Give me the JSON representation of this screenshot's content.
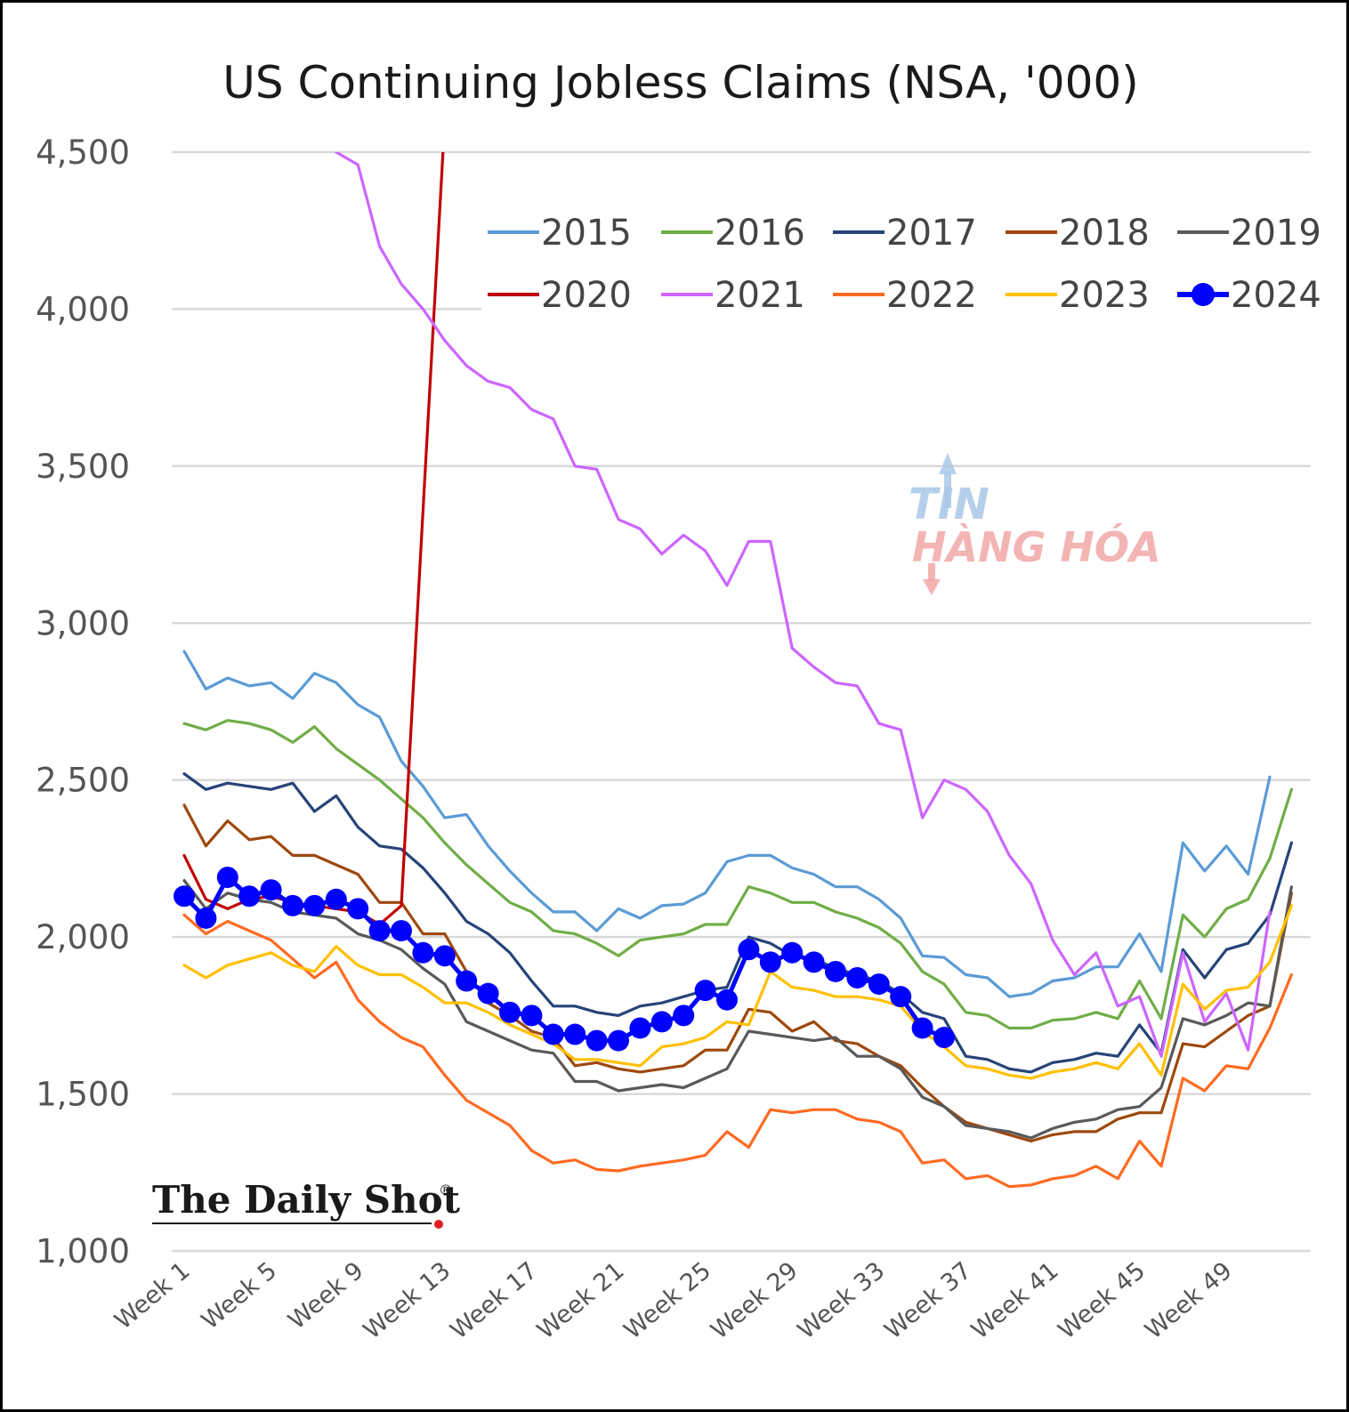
{
  "chart_data": {
    "type": "line",
    "title": "US Continuing Jobless Claims (NSA, '000)",
    "xlabel": "",
    "ylabel": "",
    "ylim": [
      1000,
      4500
    ],
    "yticks": [
      "1,000",
      "1,500",
      "2,000",
      "2,500",
      "3,000",
      "3,500",
      "4,000",
      "4,500"
    ],
    "ytick_values": [
      1000,
      1500,
      2000,
      2500,
      3000,
      3500,
      4000,
      4500
    ],
    "x_tick_labels": [
      "Week 1",
      "Week 5",
      "Week 9",
      "Week 13",
      "Week 17",
      "Week 21",
      "Week 25",
      "Week 29",
      "Week 33",
      "Week 37",
      "Week 41",
      "Week 45",
      "Week 49"
    ],
    "x_tick_weeks": [
      1,
      5,
      9,
      13,
      17,
      21,
      25,
      29,
      33,
      37,
      41,
      45,
      49
    ],
    "grid": "horizontal",
    "legend_position": "top-right",
    "series": [
      {
        "name": "2015",
        "color": "#5b9bd5",
        "values": [
          2910,
          2790,
          2825,
          2800,
          2810,
          2760,
          2840,
          2810,
          2740,
          2700,
          2560,
          2480,
          2380,
          2390,
          2290,
          2210,
          2140,
          2080,
          2080,
          2020,
          2090,
          2060,
          2100,
          2105,
          2140,
          2240,
          2260,
          2260,
          2220,
          2200,
          2160,
          2160,
          2120,
          2060,
          1940,
          1935,
          1880,
          1870,
          1810,
          1820,
          1860,
          1870,
          1905,
          1905,
          2010,
          1890,
          2300,
          2210,
          2290,
          2200,
          2510
        ]
      },
      {
        "name": "2016",
        "color": "#70ad47",
        "values": [
          2680,
          2660,
          2690,
          2680,
          2660,
          2620,
          2670,
          2600,
          2550,
          2500,
          2440,
          2380,
          2300,
          2230,
          2170,
          2110,
          2080,
          2020,
          2010,
          1980,
          1940,
          1990,
          2000,
          2010,
          2040,
          2040,
          2160,
          2140,
          2110,
          2110,
          2080,
          2060,
          2030,
          1980,
          1890,
          1850,
          1760,
          1750,
          1710,
          1710,
          1735,
          1740,
          1760,
          1740,
          1860,
          1740,
          2070,
          2000,
          2090,
          2120,
          2250,
          2470
        ]
      },
      {
        "name": "2017",
        "color": "#264478",
        "values": [
          2520,
          2470,
          2490,
          2480,
          2470,
          2490,
          2400,
          2450,
          2350,
          2290,
          2280,
          2220,
          2140,
          2050,
          2010,
          1950,
          1860,
          1780,
          1780,
          1760,
          1750,
          1780,
          1790,
          1810,
          1830,
          1840,
          2000,
          1980,
          1940,
          1930,
          1900,
          1880,
          1860,
          1820,
          1760,
          1740,
          1620,
          1610,
          1580,
          1570,
          1600,
          1610,
          1630,
          1620,
          1720,
          1630,
          1960,
          1870,
          1960,
          1980,
          2070,
          2300
        ]
      },
      {
        "name": "2018",
        "color": "#9e480e",
        "values": [
          2420,
          2290,
          2370,
          2310,
          2320,
          2260,
          2260,
          2230,
          2200,
          2110,
          2110,
          2010,
          2010,
          1890,
          1790,
          1750,
          1700,
          1680,
          1590,
          1600,
          1580,
          1570,
          1580,
          1590,
          1640,
          1640,
          1770,
          1760,
          1700,
          1730,
          1670,
          1660,
          1620,
          1590,
          1520,
          1460,
          1410,
          1390,
          1370,
          1350,
          1370,
          1380,
          1380,
          1420,
          1440,
          1440,
          1660,
          1650,
          1700,
          1750,
          1780,
          2140
        ]
      },
      {
        "name": "2019",
        "color": "#595959",
        "values": [
          2180,
          2090,
          2140,
          2120,
          2110,
          2080,
          2070,
          2060,
          2010,
          1990,
          1960,
          1900,
          1850,
          1730,
          1700,
          1670,
          1640,
          1630,
          1540,
          1540,
          1510,
          1520,
          1530,
          1520,
          1550,
          1580,
          1700,
          1690,
          1680,
          1670,
          1680,
          1620,
          1620,
          1580,
          1490,
          1460,
          1400,
          1390,
          1380,
          1360,
          1390,
          1410,
          1420,
          1450,
          1460,
          1520,
          1740,
          1720,
          1750,
          1790,
          1780,
          2160
        ]
      },
      {
        "name": "2020",
        "color": "#c00000",
        "values": [
          2260,
          2120,
          2090,
          2120,
          2130,
          2110,
          2100,
          2090,
          2080,
          2040,
          2100,
          3360,
          4600
        ]
      },
      {
        "name": "2021",
        "color": "#cc66ff",
        "values": [
          null,
          null,
          null,
          null,
          null,
          null,
          null,
          4500,
          4460,
          4200,
          4080,
          4000,
          3900,
          3820,
          3770,
          3750,
          3680,
          3650,
          3500,
          3490,
          3330,
          3300,
          3220,
          3280,
          3230,
          3120,
          3260,
          3260,
          2920,
          2860,
          2810,
          2800,
          2680,
          2660,
          2380,
          2500,
          2470,
          2400,
          2260,
          2170,
          1990,
          1880,
          1950,
          1780,
          1810,
          1620,
          1950,
          1730,
          1820,
          1640,
          2080
        ]
      },
      {
        "name": "2022",
        "color": "#ff6a21",
        "values": [
          2070,
          2010,
          2050,
          2020,
          1990,
          1930,
          1870,
          1920,
          1800,
          1730,
          1680,
          1650,
          1560,
          1480,
          1440,
          1400,
          1320,
          1280,
          1290,
          1260,
          1255,
          1270,
          1280,
          1290,
          1305,
          1380,
          1330,
          1450,
          1440,
          1450,
          1450,
          1420,
          1410,
          1380,
          1280,
          1290,
          1230,
          1240,
          1205,
          1210,
          1230,
          1240,
          1270,
          1230,
          1350,
          1270,
          1550,
          1510,
          1590,
          1580,
          1710,
          1880
        ]
      },
      {
        "name": "2023",
        "color": "#ffc000",
        "values": [
          1910,
          1870,
          1910,
          1930,
          1950,
          1910,
          1890,
          1970,
          1910,
          1880,
          1880,
          1840,
          1790,
          1790,
          1760,
          1720,
          1690,
          1660,
          1610,
          1610,
          1600,
          1590,
          1650,
          1660,
          1680,
          1730,
          1720,
          1890,
          1840,
          1830,
          1810,
          1810,
          1800,
          1780,
          1700,
          1650,
          1590,
          1580,
          1560,
          1550,
          1570,
          1580,
          1600,
          1580,
          1660,
          1560,
          1850,
          1770,
          1830,
          1840,
          1920,
          2100
        ]
      },
      {
        "name": "2024",
        "color": "#0000ff",
        "values": [
          2130,
          2060,
          2190,
          2130,
          2150,
          2100,
          2100,
          2120,
          2090,
          2020,
          2020,
          1950,
          1940,
          1860,
          1820,
          1760,
          1750,
          1690,
          1690,
          1670,
          1670,
          1710,
          1730,
          1750,
          1830,
          1800,
          1960,
          1920,
          1950,
          1920,
          1890,
          1870,
          1850,
          1810,
          1710,
          1680
        ]
      }
    ]
  },
  "brand": {
    "name": "The Daily Shot",
    "mark": "®"
  },
  "watermark": {
    "line1": "TIN",
    "line2": "HÀNG HÓA"
  }
}
